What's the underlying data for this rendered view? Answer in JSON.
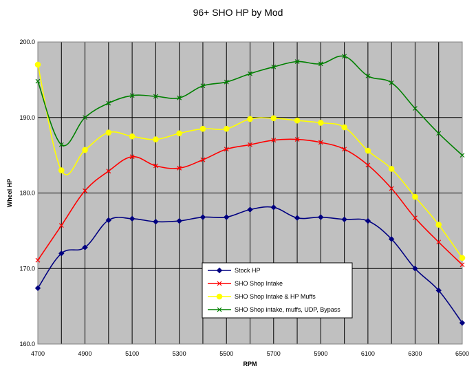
{
  "chart_data": {
    "type": "line",
    "title": "96+ SHO  HP by Mod",
    "xlabel": "RPM",
    "ylabel": "Wheel HP",
    "xlim": [
      4700,
      6500
    ],
    "ylim": [
      160,
      200
    ],
    "x": [
      4700,
      4800,
      4900,
      5000,
      5100,
      5200,
      5300,
      5400,
      5500,
      5600,
      5700,
      5800,
      5900,
      6000,
      6100,
      6200,
      6300,
      6400,
      6500
    ],
    "xticks": [
      "4700",
      "4900",
      "5100",
      "5300",
      "5500",
      "5700",
      "5900",
      "6100",
      "6300",
      "6500"
    ],
    "yticks": [
      "160.0",
      "170.0",
      "180.0",
      "190.0",
      "200.0"
    ],
    "grid": true,
    "legend_position": "bottom-center",
    "series": [
      {
        "name": "Stock HP",
        "color": "#000080",
        "marker": "diamond",
        "values": [
          167.4,
          172.0,
          172.8,
          176.4,
          176.6,
          176.2,
          176.3,
          176.8,
          176.8,
          177.8,
          178.1,
          176.7,
          176.8,
          176.5,
          176.3,
          173.9,
          170.0,
          167.1,
          162.8
        ]
      },
      {
        "name": "SHO Shop Intake",
        "color": "#ff0000",
        "marker": "x",
        "values": [
          171.1,
          175.7,
          180.3,
          182.9,
          184.8,
          183.6,
          183.3,
          184.4,
          185.8,
          186.4,
          187.0,
          187.1,
          186.7,
          185.8,
          183.7,
          180.6,
          176.7,
          173.5,
          170.5
        ]
      },
      {
        "name": "SHO Shop Intake & HP Muffs",
        "color": "#ffff00",
        "marker": "circle",
        "values": [
          197.0,
          183.0,
          185.7,
          188.0,
          187.5,
          187.1,
          187.9,
          188.5,
          188.5,
          189.8,
          189.9,
          189.6,
          189.3,
          188.7,
          185.6,
          183.2,
          179.5,
          175.8,
          171.4
        ]
      },
      {
        "name": "SHO Shop intake, muffs, UDP, Bypass",
        "color": "#008000",
        "marker": "x",
        "values": [
          194.8,
          186.4,
          190.0,
          191.9,
          192.9,
          192.8,
          192.6,
          194.2,
          194.7,
          195.8,
          196.7,
          197.4,
          197.1,
          198.1,
          195.5,
          194.6,
          191.2,
          187.9,
          185.0
        ]
      }
    ]
  }
}
